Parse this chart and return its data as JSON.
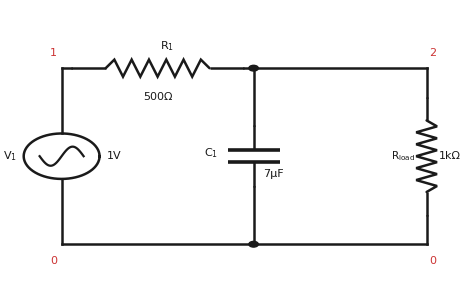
{
  "bg_color": "#ffffff",
  "line_color": "#1a1a1a",
  "node_color": "#cc3333",
  "lw": 1.8,
  "n1x": 0.13,
  "n1y": 0.76,
  "n2x": 0.9,
  "n2y": 0.76,
  "blx": 0.13,
  "bly": 0.14,
  "brx": 0.9,
  "bry": 0.14,
  "mx": 0.535,
  "node1_label": "1",
  "node2_label": "2",
  "node0l_label": "0",
  "node0r_label": "0",
  "r1_label": "R",
  "r1_sub": "1",
  "r1_value": "500Ω",
  "c1_label": "C",
  "c1_sub": "1",
  "c1_value": "7μF",
  "rload_label": "R",
  "rload_sub": "load",
  "rload_value": "1kΩ",
  "v1_label": "V",
  "v1_sub": "1",
  "v1_value": "1V"
}
